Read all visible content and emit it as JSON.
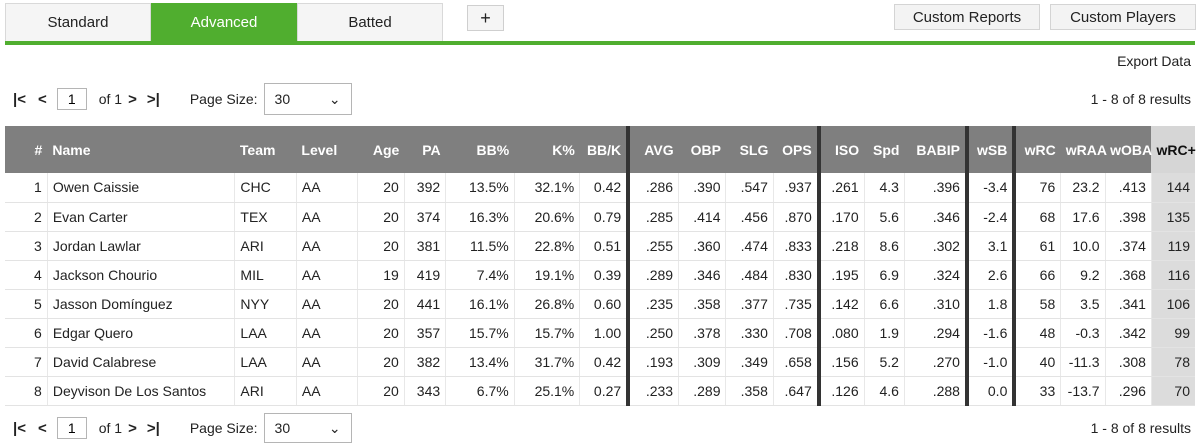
{
  "tabs": [
    {
      "label": "Standard",
      "active": false
    },
    {
      "label": "Advanced",
      "active": true
    },
    {
      "label": "Batted",
      "active": false
    }
  ],
  "plus_label": "+",
  "custom_reports_label": "Custom Reports",
  "custom_players_label": "Custom Players",
  "export_label": "Export Data",
  "pager": {
    "page": "1",
    "of_label": "of 1",
    "page_size_label": "Page Size:",
    "page_size": "30",
    "results": "1 - 8 of 8 results"
  },
  "columns": [
    "#",
    "Name",
    "Team",
    "Level",
    "Age",
    "PA",
    "BB%",
    "K%",
    "BB/K",
    "AVG",
    "OBP",
    "SLG",
    "OPS",
    "ISO",
    "Spd",
    "BABIP",
    "wSB",
    "wRC",
    "wRAA",
    "wOBA",
    "wRC+"
  ],
  "rows": [
    [
      "1",
      "Owen Caissie",
      "CHC",
      "AA",
      "20",
      "392",
      "13.5%",
      "32.1%",
      "0.42",
      ".286",
      ".390",
      ".547",
      ".937",
      ".261",
      "4.3",
      ".396",
      "-3.4",
      "76",
      "23.2",
      ".413",
      "144"
    ],
    [
      "2",
      "Evan Carter",
      "TEX",
      "AA",
      "20",
      "374",
      "16.3%",
      "20.6%",
      "0.79",
      ".285",
      ".414",
      ".456",
      ".870",
      ".170",
      "5.6",
      ".346",
      "-2.4",
      "68",
      "17.6",
      ".398",
      "135"
    ],
    [
      "3",
      "Jordan Lawlar",
      "ARI",
      "AA",
      "20",
      "381",
      "11.5%",
      "22.8%",
      "0.51",
      ".255",
      ".360",
      ".474",
      ".833",
      ".218",
      "8.6",
      ".302",
      "3.1",
      "61",
      "10.0",
      ".374",
      "119"
    ],
    [
      "4",
      "Jackson Chourio",
      "MIL",
      "AA",
      "19",
      "419",
      "7.4%",
      "19.1%",
      "0.39",
      ".289",
      ".346",
      ".484",
      ".830",
      ".195",
      "6.9",
      ".324",
      "2.6",
      "66",
      "9.2",
      ".368",
      "116"
    ],
    [
      "5",
      "Jasson Domínguez",
      "NYY",
      "AA",
      "20",
      "441",
      "16.1%",
      "26.8%",
      "0.60",
      ".235",
      ".358",
      ".377",
      ".735",
      ".142",
      "6.6",
      ".310",
      "1.8",
      "58",
      "3.5",
      ".341",
      "106"
    ],
    [
      "6",
      "Edgar Quero",
      "LAA",
      "AA",
      "20",
      "357",
      "15.7%",
      "15.7%",
      "1.00",
      ".250",
      ".378",
      ".330",
      ".708",
      ".080",
      "1.9",
      ".294",
      "-1.6",
      "48",
      "-0.3",
      ".342",
      "99"
    ],
    [
      "7",
      "David Calabrese",
      "LAA",
      "AA",
      "20",
      "382",
      "13.4%",
      "31.7%",
      "0.42",
      ".193",
      ".309",
      ".349",
      ".658",
      ".156",
      "5.2",
      ".270",
      "-1.0",
      "40",
      "-11.3",
      ".308",
      "78"
    ],
    [
      "8",
      "Deyvison De Los Santos",
      "ARI",
      "AA",
      "20",
      "343",
      "6.7%",
      "25.1%",
      "0.27",
      ".233",
      ".289",
      ".358",
      ".647",
      ".126",
      "4.6",
      ".288",
      "0.0",
      "33",
      "-13.7",
      ".296",
      "70"
    ]
  ]
}
